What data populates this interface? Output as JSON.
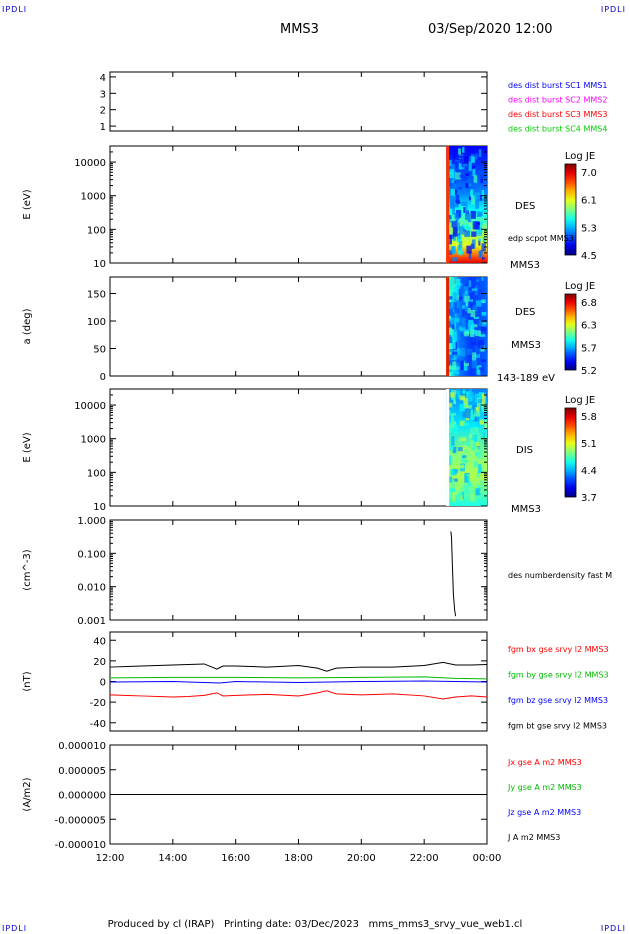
{
  "header": {
    "corner_tl": "IPDLI",
    "corner_tr": "IPDLI",
    "corner_bl": "IPDLI",
    "corner_br": "IPDLI",
    "spacecraft": "MMS3",
    "datetime": "03/Sep/2020 12:00"
  },
  "footer": "Produced by cl (IRAP)   Printing date: 03/Dec/2023   mms_mms3_srvy_vue_web1.cl",
  "time_axis": {
    "ticks": [
      "12:00",
      "14:00",
      "16:00",
      "18:00",
      "20:00",
      "22:00",
      "00:00"
    ],
    "start_hours": 12,
    "end_hours": 24
  },
  "chart_data": [
    {
      "type": "line",
      "panel": "spacecraft-availability",
      "yticks": [
        "1",
        "2",
        "3",
        "4"
      ],
      "ylim": [
        0.7,
        4.3
      ],
      "legend": [
        {
          "label": "des dist burst SC1 MMS1",
          "color": "#0000ff"
        },
        {
          "label": "des dist burst SC2 MMS2",
          "color": "#ff00ff"
        },
        {
          "label": "des dist burst SC3 MMS3",
          "color": "#ff0000"
        },
        {
          "label": "des dist burst SC4 MMS4",
          "color": "#00cc00"
        }
      ]
    },
    {
      "type": "heatmap",
      "panel": "des-energy-spectrogram",
      "ylabel": "E (eV)",
      "yscale": "log",
      "yticks": [
        "10",
        "100",
        "1000",
        "10000"
      ],
      "ylim": [
        10,
        30000
      ],
      "data_start_hours": 22.7,
      "right_labels": [
        "DES",
        "edp scpot MMS3",
        "MMS3"
      ],
      "colorbar": {
        "title": "Log JE",
        "ticks": [
          "7.0",
          "6.1",
          "5.3",
          "4.5"
        ]
      }
    },
    {
      "type": "heatmap",
      "panel": "des-pitch-angle",
      "ylabel": "a (deg)",
      "yticks": [
        "0",
        "50",
        "100",
        "150"
      ],
      "ylim": [
        0,
        180
      ],
      "data_start_hours": 22.7,
      "right_labels": [
        "DES",
        "MMS3",
        "143-189 eV"
      ],
      "colorbar": {
        "title": "Log JE",
        "ticks": [
          "6.8",
          "6.3",
          "5.7",
          "5.2"
        ]
      }
    },
    {
      "type": "heatmap",
      "panel": "dis-energy-spectrogram",
      "ylabel": "E (eV)",
      "yscale": "log",
      "yticks": [
        "10",
        "100",
        "1000",
        "10000"
      ],
      "ylim": [
        10,
        30000
      ],
      "data_start_hours": 22.7,
      "right_labels": [
        "DIS",
        "MMS3"
      ],
      "colorbar": {
        "title": "Log JE",
        "ticks": [
          "5.8",
          "5.1",
          "4.4",
          "3.7"
        ]
      }
    },
    {
      "type": "line",
      "panel": "density",
      "ylabel": "(cm^-3)",
      "yscale": "log",
      "yticks": [
        "1.000",
        "0.100",
        "0.010",
        "0.001"
      ],
      "ylim": [
        0.001,
        1.0
      ],
      "series": [
        {
          "name": "des numberdensity fast M",
          "color": "#000000",
          "x": [
            22.85,
            22.87,
            22.9,
            22.93,
            22.97,
            23.0
          ],
          "y": [
            0.45,
            0.3,
            0.04,
            0.006,
            0.002,
            0.0013
          ]
        }
      ]
    },
    {
      "type": "line",
      "panel": "magnetic-field",
      "ylabel": "(nT)",
      "yticks": [
        "40",
        "20",
        "0",
        "-20",
        "-40"
      ],
      "ylim": [
        -48,
        48
      ],
      "series": [
        {
          "name": "fgm bx gse srvy l2 MMS3",
          "color": "#ff0000",
          "x": [
            12,
            13,
            14,
            14.5,
            15,
            15.4,
            15.6,
            16,
            17,
            18,
            18.6,
            18.9,
            19.2,
            20,
            21,
            22,
            22.6,
            23,
            23.5,
            24
          ],
          "y": [
            -13,
            -14,
            -15,
            -14.5,
            -13.5,
            -11,
            -14,
            -13.5,
            -12.5,
            -14,
            -11,
            -9,
            -12,
            -13,
            -12,
            -14,
            -17,
            -15,
            -14,
            -15
          ]
        },
        {
          "name": "fgm by gse srvy l2 MMS3",
          "color": "#00bb00",
          "x": [
            12,
            14,
            16,
            18,
            20,
            22,
            23,
            24
          ],
          "y": [
            3.5,
            4,
            4,
            3.5,
            4,
            4.5,
            3,
            2.5
          ]
        },
        {
          "name": "fgm bz gse srvy l2 MMS3",
          "color": "#0000ff",
          "x": [
            12,
            14,
            15.5,
            16,
            18,
            20,
            22,
            23,
            24
          ],
          "y": [
            -0.5,
            0,
            -1.5,
            0,
            -1,
            0,
            0.5,
            0,
            -0.5
          ]
        },
        {
          "name": "fgm bt gse srvy l2 MMS3",
          "color": "#000000",
          "x": [
            12,
            13,
            14,
            14.5,
            15,
            15.4,
            15.6,
            16,
            17,
            18,
            18.6,
            18.9,
            19.2,
            20,
            21,
            22,
            22.6,
            23,
            23.5,
            24
          ],
          "y": [
            14,
            15,
            16,
            16.5,
            17,
            12,
            15,
            15,
            14,
            15.5,
            13,
            10,
            13,
            14,
            14,
            15.5,
            18.5,
            16,
            16,
            16.5
          ]
        }
      ]
    },
    {
      "type": "line",
      "panel": "current-density",
      "ylabel": "(A/m2)",
      "yticks": [
        "0.000010",
        "0.000005",
        "0.000000",
        "-0.000005",
        "-0.000010"
      ],
      "ylim": [
        -1e-05,
        1e-05
      ],
      "series": [
        {
          "name": "Jx gse A m2 MMS3",
          "color": "#ff0000",
          "x": [
            12,
            24
          ],
          "y": [
            0,
            0
          ]
        },
        {
          "name": "Jy gse A m2 MMS3",
          "color": "#00bb00",
          "x": [
            12,
            24
          ],
          "y": [
            0,
            0
          ]
        },
        {
          "name": "Jz gse A m2 MMS3",
          "color": "#0000ff",
          "x": [
            12,
            24
          ],
          "y": [
            0,
            0
          ]
        },
        {
          "name": "J A m2 MMS3",
          "color": "#000000",
          "x": [
            12,
            24
          ],
          "y": [
            0,
            0
          ]
        }
      ]
    }
  ]
}
